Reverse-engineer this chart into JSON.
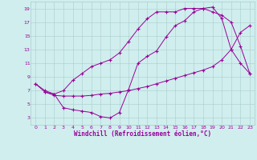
{
  "xlabel": "Windchill (Refroidissement éolien,°C)",
  "bg_color": "#d0eeee",
  "line_color": "#990099",
  "grid_color": "#aacccc",
  "xlim": [
    -0.5,
    23.5
  ],
  "ylim": [
    2,
    20
  ],
  "xticks": [
    0,
    1,
    2,
    3,
    4,
    5,
    6,
    7,
    8,
    9,
    10,
    11,
    12,
    13,
    14,
    15,
    16,
    17,
    18,
    19,
    20,
    21,
    22,
    23
  ],
  "yticks": [
    3,
    5,
    7,
    9,
    11,
    13,
    15,
    17,
    19
  ],
  "curve1_x": [
    0,
    1,
    2,
    3,
    4,
    5,
    6,
    7,
    8,
    9,
    10,
    11,
    12,
    13,
    14,
    15,
    16,
    17,
    18,
    19,
    20,
    21,
    22,
    23
  ],
  "curve1_y": [
    8,
    7,
    6.5,
    4.5,
    4.2,
    4.0,
    3.8,
    3.2,
    3.0,
    3.8,
    7.2,
    11.0,
    12.0,
    12.8,
    14.8,
    16.5,
    17.2,
    18.5,
    19.0,
    19.2,
    17.5,
    13.0,
    11.0,
    9.5
  ],
  "curve2_x": [
    0,
    1,
    2,
    3,
    4,
    5,
    6,
    7,
    8,
    9,
    10,
    11,
    12,
    13,
    14,
    15,
    16,
    17,
    18,
    19,
    20,
    21,
    22,
    23
  ],
  "curve2_y": [
    8,
    6.8,
    6.3,
    6.2,
    6.2,
    6.2,
    6.3,
    6.5,
    6.6,
    6.8,
    7.0,
    7.3,
    7.6,
    8.0,
    8.4,
    8.8,
    9.2,
    9.6,
    10.0,
    10.5,
    11.5,
    13.0,
    15.5,
    16.5
  ],
  "curve3_x": [
    1,
    2,
    3,
    4,
    5,
    6,
    7,
    8,
    9,
    10,
    11,
    12,
    13,
    14,
    15,
    16,
    17,
    18,
    19,
    20,
    21,
    22,
    23
  ],
  "curve3_y": [
    6.8,
    6.5,
    7.0,
    8.5,
    9.5,
    10.5,
    11.0,
    11.5,
    12.5,
    14.2,
    16.0,
    17.5,
    18.5,
    18.5,
    18.5,
    19.0,
    19.0,
    19.0,
    18.5,
    18.0,
    17.0,
    13.5,
    9.5
  ]
}
